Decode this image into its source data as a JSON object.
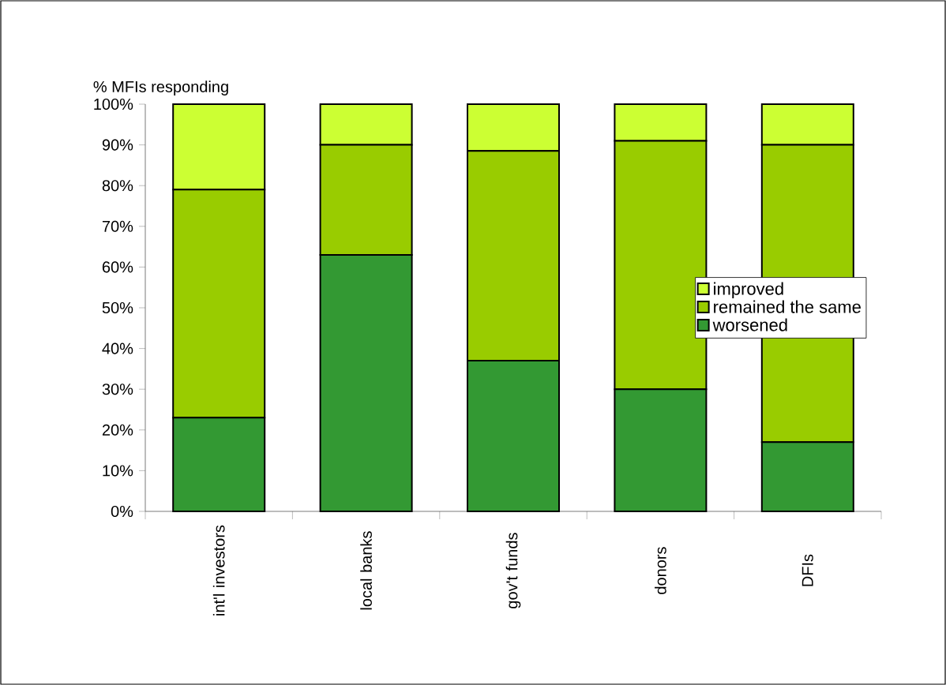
{
  "chart_data": {
    "type": "bar",
    "stacked": true,
    "ylabel": "% MFIs responding",
    "categories": [
      "int'l investors",
      "local banks",
      "gov't funds",
      "donors",
      "DFIs"
    ],
    "series": [
      {
        "name": "worsened",
        "color": "#339933",
        "values": [
          23,
          63,
          37,
          30,
          17
        ]
      },
      {
        "name": "remained the same",
        "color": "#99cc00",
        "values": [
          56,
          27,
          51.5,
          61,
          73
        ]
      },
      {
        "name": "improved",
        "color": "#ccff33",
        "values": [
          21,
          10,
          11.5,
          9,
          10
        ]
      }
    ],
    "ylim": [
      0,
      100
    ],
    "yticks": [
      {
        "value": 0,
        "label": "0%"
      },
      {
        "value": 10,
        "label": "10%"
      },
      {
        "value": 20,
        "label": "20%"
      },
      {
        "value": 30,
        "label": "30%"
      },
      {
        "value": 40,
        "label": "40%"
      },
      {
        "value": 50,
        "label": "50%"
      },
      {
        "value": 60,
        "label": "60%"
      },
      {
        "value": 70,
        "label": "70%"
      },
      {
        "value": 80,
        "label": "80%"
      },
      {
        "value": 90,
        "label": "90%"
      },
      {
        "value": 100,
        "label": "100%"
      }
    ],
    "grid": false,
    "legend": "right"
  }
}
